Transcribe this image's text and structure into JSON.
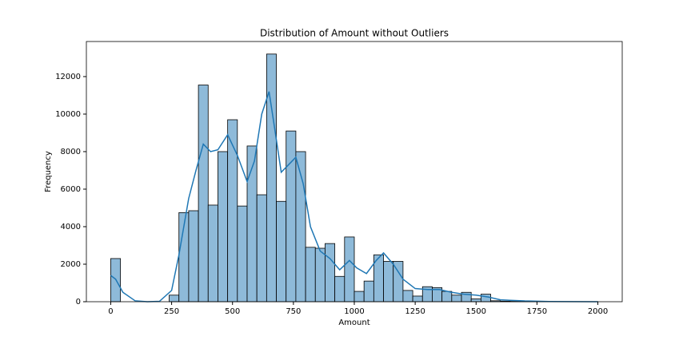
{
  "chart_data": {
    "type": "histogram",
    "title": "Distribution of Amount without Outliers",
    "x_label": "Amount",
    "y_label": "Frequency",
    "bins": [
      0,
      40,
      80,
      120,
      160,
      200,
      240,
      280,
      320,
      360,
      400,
      440,
      480,
      520,
      560,
      600,
      640,
      680,
      720,
      760,
      800,
      840,
      880,
      920,
      960,
      1000,
      1040,
      1080,
      1120,
      1160,
      1200,
      1240,
      1280,
      1320,
      1360,
      1400,
      1440,
      1480,
      1520,
      1560,
      1600,
      1640,
      1680,
      1720,
      1760,
      1800,
      1840,
      1880,
      1920,
      1960,
      2000
    ],
    "values": [
      2300,
      0,
      0,
      0,
      0,
      0,
      350,
      4750,
      4850,
      11550,
      5150,
      8000,
      9700,
      5100,
      8300,
      5700,
      13200,
      5350,
      9100,
      8000,
      2900,
      2850,
      3100,
      1350,
      3450,
      550,
      1100,
      2500,
      2150,
      2150,
      600,
      300,
      800,
      750,
      550,
      350,
      500,
      150,
      400,
      50,
      30,
      20,
      10,
      5,
      3,
      2,
      2,
      1,
      1,
      1
    ],
    "color": "#8ebad9",
    "edge_color": "#000000",
    "kde": {
      "color": "#1f77b4",
      "x": [
        0,
        20,
        50,
        100,
        150,
        200,
        250,
        280,
        320,
        350,
        380,
        410,
        440,
        480,
        520,
        560,
        590,
        620,
        650,
        670,
        700,
        730,
        760,
        790,
        820,
        860,
        900,
        940,
        980,
        1010,
        1050,
        1090,
        1120,
        1160,
        1200,
        1250,
        1300,
        1350,
        1400,
        1450,
        1500,
        1550,
        1600,
        1700,
        1800,
        2000
      ],
      "y": [
        1400,
        1200,
        500,
        50,
        0,
        20,
        600,
        2500,
        5500,
        7000,
        8400,
        8000,
        8100,
        8900,
        7800,
        6400,
        7500,
        10000,
        11200,
        9500,
        6900,
        7300,
        7700,
        6300,
        4000,
        2700,
        2300,
        1700,
        2200,
        1800,
        1500,
        2200,
        2600,
        2000,
        1200,
        700,
        650,
        650,
        500,
        400,
        350,
        250,
        100,
        40,
        10,
        0
      ]
    },
    "xlim": [
      -100,
      2100
    ],
    "ylim": [
      0,
      13870
    ],
    "xticks": [
      0,
      250,
      500,
      750,
      1000,
      1250,
      1500,
      1750,
      2000
    ],
    "yticks": [
      0,
      2000,
      4000,
      6000,
      8000,
      10000,
      12000
    ]
  }
}
